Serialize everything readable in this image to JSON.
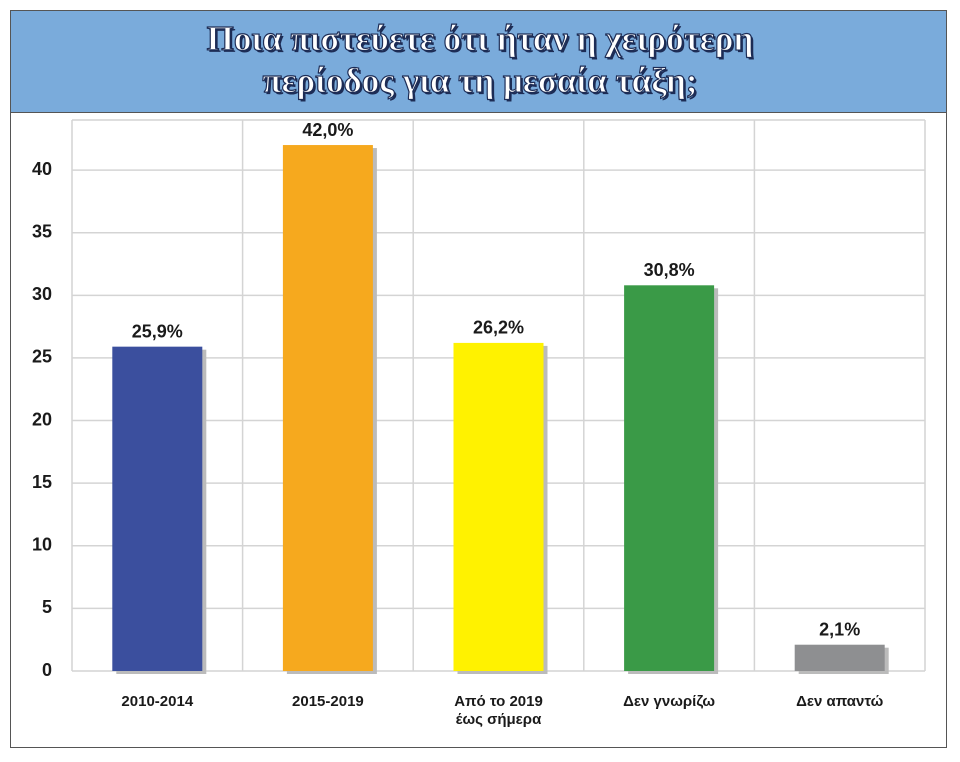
{
  "chart_data": {
    "type": "bar",
    "title": "Ποια πιστεύετε ότι ήταν η χειρότερη περίοδος για τη μεσαία τάξη;",
    "categories": [
      "2010-2014",
      "2015-2019",
      "Από το 2019 έως σήμερα",
      "Δεν γνωρίζω",
      "Δεν απαντώ"
    ],
    "values": [
      25.9,
      42.0,
      26.2,
      30.8,
      2.1
    ],
    "value_labels": [
      "25,9%",
      "42,0%",
      "26,2%",
      "30,8%",
      "2,1%"
    ],
    "colors": [
      "#3b4f9e",
      "#f6a91e",
      "#fff200",
      "#3a9a47",
      "#8e8f91"
    ],
    "ylim": [
      0,
      44
    ],
    "yticks": [
      0,
      5,
      10,
      15,
      20,
      25,
      30,
      35,
      40
    ],
    "grid": true
  }
}
